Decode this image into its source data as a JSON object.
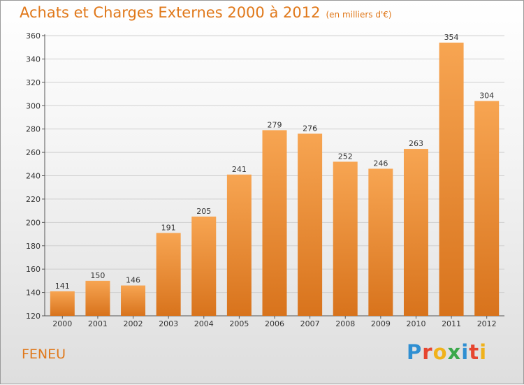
{
  "header": {
    "title": "Achats et Charges Externes 2000 à 2012",
    "subtitle": "(en milliers d'€)"
  },
  "footer": {
    "commune": "FENEU",
    "logo": "Proxiti"
  },
  "colors": {
    "title": "#e0781a",
    "bar_light": "#f7a552",
    "bar_dark": "#d8731c",
    "grid": "#cfcfcf"
  },
  "chart_data": {
    "type": "bar",
    "title": "Achats et Charges Externes 2000 à 2012",
    "subtitle": "(en milliers d'€)",
    "categories": [
      "2000",
      "2001",
      "2002",
      "2003",
      "2004",
      "2005",
      "2006",
      "2007",
      "2008",
      "2009",
      "2010",
      "2011",
      "2012"
    ],
    "values": [
      141,
      150,
      146,
      191,
      205,
      241,
      279,
      276,
      252,
      246,
      263,
      354,
      304
    ],
    "ylim": [
      120,
      360
    ],
    "yticks": [
      120,
      140,
      160,
      180,
      200,
      220,
      240,
      260,
      280,
      300,
      320,
      340,
      360
    ],
    "grid": true,
    "data_labels": true
  }
}
